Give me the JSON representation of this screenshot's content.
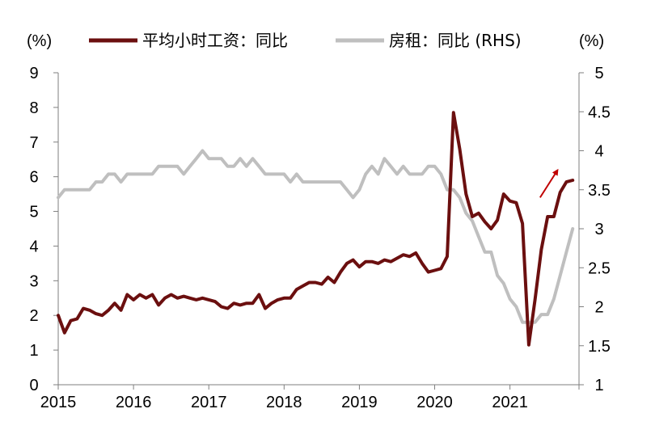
{
  "chart_data": {
    "type": "line",
    "y_left_unit": "(%)",
    "y_right_unit": "(%)",
    "x_ticks": [
      "2015",
      "2016",
      "2017",
      "2018",
      "2019",
      "2020",
      "2021"
    ],
    "x_range": [
      2015,
      2021.917
    ],
    "y_left_ticks": [
      "0",
      "1",
      "2",
      "3",
      "4",
      "5",
      "6",
      "7",
      "8",
      "9"
    ],
    "y_left_range": [
      0,
      9
    ],
    "y_right_ticks": [
      "1",
      "1.5",
      "2",
      "2.5",
      "3",
      "3.5",
      "4",
      "4.5",
      "5"
    ],
    "y_right_range": [
      1,
      5
    ],
    "grid": false,
    "legend_position": "top",
    "series": [
      {
        "name": "平均小时工资：同比",
        "axis": "left",
        "color": "#6b0f0f",
        "x_start": 2015.0,
        "x_step": 0.08333,
        "values": [
          2.0,
          1.5,
          1.85,
          1.9,
          2.2,
          2.15,
          2.05,
          2.0,
          2.15,
          2.35,
          2.15,
          2.6,
          2.45,
          2.6,
          2.5,
          2.6,
          2.3,
          2.5,
          2.6,
          2.5,
          2.55,
          2.5,
          2.45,
          2.5,
          2.45,
          2.4,
          2.25,
          2.2,
          2.35,
          2.3,
          2.35,
          2.35,
          2.6,
          2.2,
          2.35,
          2.45,
          2.5,
          2.5,
          2.75,
          2.85,
          2.95,
          2.95,
          2.9,
          3.1,
          2.95,
          3.25,
          3.5,
          3.6,
          3.4,
          3.55,
          3.55,
          3.5,
          3.6,
          3.55,
          3.65,
          3.75,
          3.7,
          3.8,
          3.5,
          3.25,
          3.3,
          3.35,
          3.7,
          7.85,
          6.8,
          5.5,
          4.85,
          4.95,
          4.7,
          4.5,
          4.75,
          5.5,
          5.3,
          5.25,
          4.65,
          1.15,
          2.45,
          3.9,
          4.85,
          4.85,
          5.55,
          5.85,
          5.9
        ]
      },
      {
        "name": "房租：同比 (RHS)",
        "axis": "right",
        "color": "#bfbfbf",
        "x_start": 2015.0,
        "x_step": 0.08333,
        "values": [
          3.4,
          3.5,
          3.5,
          3.5,
          3.5,
          3.5,
          3.6,
          3.6,
          3.7,
          3.7,
          3.6,
          3.7,
          3.7,
          3.7,
          3.7,
          3.7,
          3.8,
          3.8,
          3.8,
          3.8,
          3.7,
          3.8,
          3.9,
          4.0,
          3.9,
          3.9,
          3.9,
          3.8,
          3.8,
          3.9,
          3.8,
          3.9,
          3.8,
          3.7,
          3.7,
          3.7,
          3.7,
          3.6,
          3.7,
          3.6,
          3.6,
          3.6,
          3.6,
          3.6,
          3.6,
          3.6,
          3.5,
          3.4,
          3.5,
          3.7,
          3.8,
          3.7,
          3.9,
          3.8,
          3.7,
          3.8,
          3.7,
          3.7,
          3.7,
          3.8,
          3.8,
          3.7,
          3.5,
          3.5,
          3.4,
          3.2,
          3.1,
          2.9,
          2.7,
          2.7,
          2.4,
          2.3,
          2.1,
          2.0,
          1.8,
          1.8,
          1.8,
          1.9,
          1.9,
          2.1,
          2.4,
          2.7,
          3.0
        ]
      }
    ],
    "annotation": {
      "type": "arrow",
      "color": "#c00000",
      "from": [
        2021.4,
        5.4
      ],
      "to": [
        2021.62,
        6.15
      ]
    }
  }
}
